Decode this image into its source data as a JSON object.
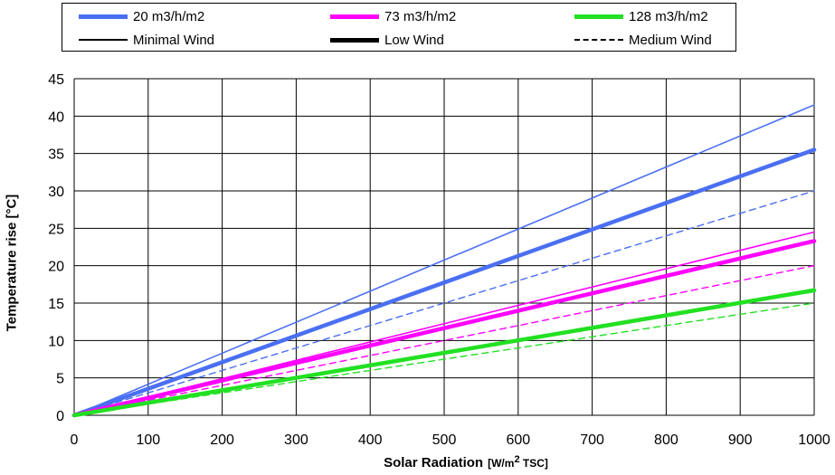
{
  "chart_data": {
    "type": "line",
    "xlabel": "Solar Radiation",
    "xlabel_unit": "[W/m",
    "xlabel_unit_sup": "2",
    "xlabel_unit_suffix": " TSC]",
    "ylabel": "Temperature rise [°C]",
    "xlim": [
      0,
      1000
    ],
    "ylim": [
      0,
      45
    ],
    "x_ticks": [
      0,
      100,
      200,
      300,
      400,
      500,
      600,
      700,
      800,
      900,
      1000
    ],
    "y_ticks": [
      0,
      5,
      10,
      15,
      20,
      25,
      30,
      35,
      40,
      45
    ],
    "grid": true,
    "legend_position": "top",
    "colors": {
      "flow_20": "#4a6ff2",
      "flow_73": "#ff00ff",
      "flow_128": "#22e022"
    },
    "legend": {
      "flow_20": "20 m3/h/m2",
      "flow_73": "73 m3/h/m2",
      "flow_128": "128 m3/h/m2",
      "minimal": "Minimal Wind",
      "low": "Low Wind",
      "medium": "Medium Wind"
    },
    "series": [
      {
        "flow": "20 m3/h/m2",
        "wind": "Minimal Wind",
        "x": [
          0,
          1000
        ],
        "values": [
          0,
          41.5
        ]
      },
      {
        "flow": "20 m3/h/m2",
        "wind": "Low Wind",
        "x": [
          0,
          1000
        ],
        "values": [
          0,
          35.5
        ]
      },
      {
        "flow": "20 m3/h/m2",
        "wind": "Medium Wind",
        "x": [
          0,
          1000
        ],
        "values": [
          0,
          30
        ]
      },
      {
        "flow": "73 m3/h/m2",
        "wind": "Minimal Wind",
        "x": [
          0,
          1000
        ],
        "values": [
          0,
          24.5
        ]
      },
      {
        "flow": "73 m3/h/m2",
        "wind": "Low Wind",
        "x": [
          0,
          1000
        ],
        "values": [
          0,
          23.3
        ]
      },
      {
        "flow": "73 m3/h/m2",
        "wind": "Medium Wind",
        "x": [
          0,
          1000
        ],
        "values": [
          0,
          20
        ]
      },
      {
        "flow": "128 m3/h/m2",
        "wind": "Minimal Wind",
        "x": [
          0,
          1000
        ],
        "values": [
          0,
          16.9
        ]
      },
      {
        "flow": "128 m3/h/m2",
        "wind": "Low Wind",
        "x": [
          0,
          1000
        ],
        "values": [
          0,
          16.7
        ]
      },
      {
        "flow": "128 m3/h/m2",
        "wind": "Medium Wind",
        "x": [
          0,
          1000
        ],
        "values": [
          0,
          15
        ]
      }
    ]
  }
}
